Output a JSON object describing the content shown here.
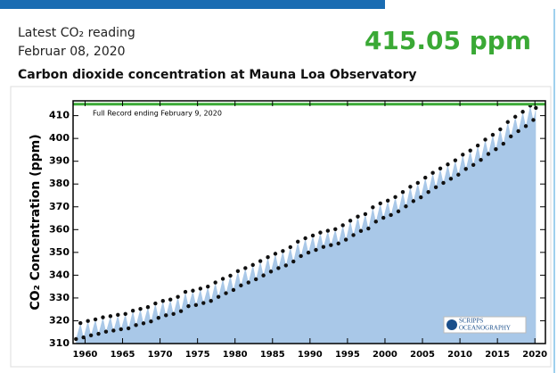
{
  "header": {
    "label": "Latest CO₂ reading",
    "date": "Februar 08, 2020",
    "reading": "415.05 ppm"
  },
  "chart_data": {
    "type": "scatter",
    "title": "Carbon dioxide concentration at Mauna Loa Observatory",
    "annotation": "Full Record ending February 9, 2020",
    "y_label": "CO₂ Concentration (ppm)",
    "logo": [
      "SCRIPPS",
      "OCEANOGRAPHY"
    ],
    "color": "#111111",
    "area_color": "#a9c8e8",
    "reference_line": {
      "value": 415.05,
      "color": "#3aa935"
    },
    "xlim": [
      1958.4,
      2021.4
    ],
    "ylim": [
      310,
      416.5
    ],
    "xticks": [
      1960,
      1965,
      1970,
      1975,
      1980,
      1985,
      1990,
      1995,
      2000,
      2005,
      2010,
      2015,
      2020
    ],
    "yticks": [
      310,
      320,
      330,
      340,
      350,
      360,
      370,
      380,
      390,
      400,
      410
    ],
    "x": [
      1958.79,
      1959.38,
      1959.79,
      1960.38,
      1960.79,
      1961.38,
      1961.79,
      1962.38,
      1962.79,
      1963.38,
      1963.79,
      1964.38,
      1964.79,
      1965.38,
      1965.79,
      1966.38,
      1966.79,
      1967.38,
      1967.79,
      1968.38,
      1968.79,
      1969.38,
      1969.79,
      1970.38,
      1970.79,
      1971.38,
      1971.79,
      1972.38,
      1972.79,
      1973.38,
      1973.79,
      1974.38,
      1974.79,
      1975.38,
      1975.79,
      1976.38,
      1976.79,
      1977.38,
      1977.79,
      1978.38,
      1978.79,
      1979.38,
      1979.79,
      1980.38,
      1980.79,
      1981.38,
      1981.79,
      1982.38,
      1982.79,
      1983.38,
      1983.79,
      1984.38,
      1984.79,
      1985.38,
      1985.79,
      1986.38,
      1986.79,
      1987.38,
      1987.79,
      1988.38,
      1988.79,
      1989.38,
      1989.79,
      1990.38,
      1990.79,
      1991.38,
      1991.79,
      1992.38,
      1992.79,
      1993.38,
      1993.79,
      1994.38,
      1994.79,
      1995.38,
      1995.79,
      1996.38,
      1996.79,
      1997.38,
      1997.79,
      1998.38,
      1998.79,
      1999.38,
      1999.79,
      2000.38,
      2000.79,
      2001.38,
      2001.79,
      2002.38,
      2002.79,
      2003.38,
      2003.79,
      2004.38,
      2004.79,
      2005.38,
      2005.79,
      2006.38,
      2006.79,
      2007.38,
      2007.79,
      2008.38,
      2008.79,
      2009.38,
      2009.79,
      2010.38,
      2010.79,
      2011.38,
      2011.79,
      2012.38,
      2012.79,
      2013.38,
      2013.79,
      2014.38,
      2014.79,
      2015.38,
      2015.79,
      2016.38,
      2016.79,
      2017.38,
      2017.79,
      2018.38,
      2018.79,
      2019.38,
      2019.79,
      2020.13
    ],
    "values": [
      312.0,
      319.0,
      312.7,
      319.9,
      313.6,
      320.6,
      314.3,
      321.5,
      315.2,
      322.0,
      315.7,
      322.6,
      316.3,
      323.0,
      316.7,
      324.4,
      318.1,
      325.2,
      318.9,
      326.0,
      319.7,
      327.6,
      321.3,
      328.7,
      322.4,
      329.3,
      323.0,
      330.5,
      324.2,
      332.7,
      326.4,
      333.2,
      326.9,
      334.1,
      327.8,
      335.0,
      328.7,
      336.8,
      330.5,
      338.4,
      332.1,
      339.8,
      333.5,
      341.8,
      335.5,
      343.1,
      336.8,
      344.5,
      338.2,
      346.2,
      339.9,
      347.9,
      341.6,
      349.4,
      343.1,
      350.6,
      344.3,
      352.3,
      346.0,
      354.7,
      348.4,
      356.2,
      349.9,
      357.4,
      351.1,
      358.7,
      352.4,
      359.5,
      353.2,
      360.2,
      353.9,
      361.9,
      355.6,
      363.9,
      357.6,
      365.7,
      359.4,
      366.8,
      360.5,
      369.8,
      363.5,
      371.5,
      365.2,
      372.7,
      366.4,
      374.3,
      368.0,
      376.5,
      370.2,
      378.8,
      372.5,
      380.5,
      374.2,
      382.8,
      376.5,
      384.9,
      378.6,
      386.8,
      380.5,
      388.6,
      382.3,
      390.4,
      384.1,
      392.9,
      386.6,
      394.7,
      388.4,
      396.9,
      390.6,
      399.5,
      393.2,
      401.6,
      395.3,
      404.0,
      397.7,
      407.2,
      400.9,
      409.5,
      403.2,
      411.7,
      405.4,
      414.4,
      408.1,
      413.4
    ]
  }
}
